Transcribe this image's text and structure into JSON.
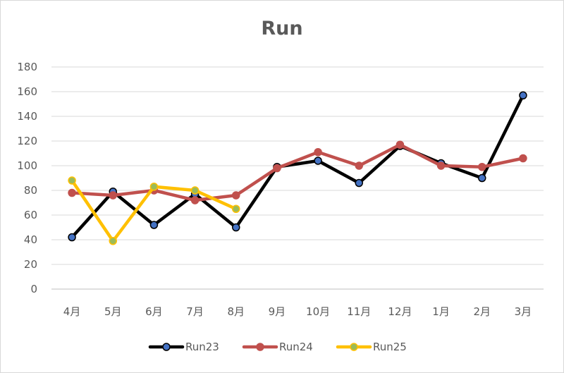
{
  "chart_data": {
    "type": "line",
    "title": "Run",
    "xlabel": "",
    "ylabel": "",
    "categories": [
      "4月",
      "5月",
      "6月",
      "7月",
      "8月",
      "9月",
      "10月",
      "11月",
      "12月",
      "1月",
      "2月",
      "3月"
    ],
    "ylim": [
      0,
      180
    ],
    "yticks": [
      0,
      20,
      40,
      60,
      80,
      100,
      120,
      140,
      160,
      180
    ],
    "grid": true,
    "legend_position": "bottom",
    "series": [
      {
        "name": "Run23",
        "color": "#000000",
        "marker_color": "#4472c4",
        "values": [
          42,
          79,
          52,
          77,
          50,
          99,
          104,
          86,
          116,
          102,
          90,
          157
        ]
      },
      {
        "name": "Run24",
        "color": "#c0504d",
        "marker_color": "#c0504d",
        "values": [
          78,
          76,
          80,
          72,
          76,
          98,
          111,
          100,
          117,
          100,
          99,
          106
        ]
      },
      {
        "name": "Run25",
        "color": "#ffc000",
        "marker_color": "#9bbb59",
        "values": [
          88,
          39,
          83,
          80,
          65,
          null,
          null,
          null,
          null,
          null,
          null,
          null
        ]
      }
    ]
  }
}
